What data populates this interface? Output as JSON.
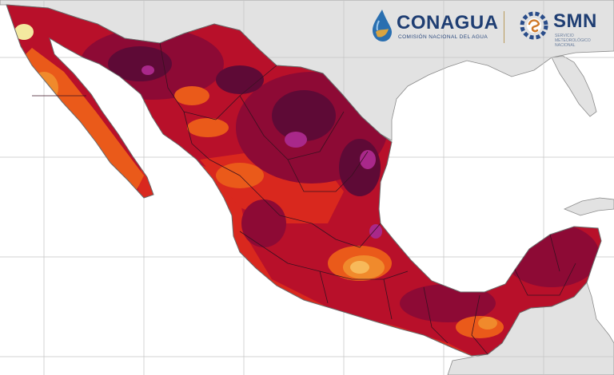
{
  "map": {
    "region": "México",
    "colors": {
      "ocean": "#ffffff",
      "neighbor_land": "#e2e2e2",
      "grid_lines": "#c4c4c4",
      "state_borders": "#3a1020",
      "coast": "#6a6a6a",
      "darkest_heat": "#5e0a36",
      "very_high_heat": "#8d0a35",
      "high_heat": "#b8102a",
      "hot": "#d9281e",
      "warm": "#ea5a1a",
      "mild": "#f08a2c",
      "cooler": "#f7b95a",
      "coolest": "#f3e9a0",
      "extreme_pockets": "#a9288a"
    }
  },
  "logos": {
    "conagua": {
      "name": "CONAGUA",
      "subtitle": "COMISIÓN NACIONAL DEL AGUA",
      "icon": "water-drop-icon"
    },
    "smn": {
      "name": "SMN",
      "subtitle": "SERVICIO METEOROLÓGICO NACIONAL",
      "icon": "gear-sun-icon"
    }
  }
}
